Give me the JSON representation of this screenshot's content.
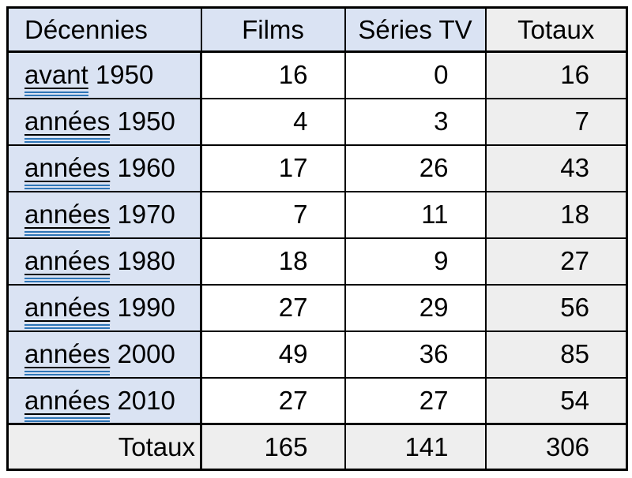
{
  "table": {
    "headers": {
      "decades": "Décennies",
      "films": "Films",
      "series": "Séries TV",
      "totals": "Totaux"
    },
    "rows": [
      {
        "word": "avant",
        "year": "1950",
        "films": "16",
        "series": "0",
        "total": "16"
      },
      {
        "word": "années",
        "year": "1950",
        "films": "4",
        "series": "3",
        "total": "7"
      },
      {
        "word": "années",
        "year": "1960",
        "films": "17",
        "series": "26",
        "total": "43"
      },
      {
        "word": "années",
        "year": "1970",
        "films": "7",
        "series": "11",
        "total": "18"
      },
      {
        "word": "années",
        "year": "1980",
        "films": "18",
        "series": "9",
        "total": "27"
      },
      {
        "word": "années",
        "year": "1990",
        "films": "27",
        "series": "29",
        "total": "56"
      },
      {
        "word": "années",
        "year": "2000",
        "films": "49",
        "series": "36",
        "total": "85"
      },
      {
        "word": "années",
        "year": "2010",
        "films": "27",
        "series": "27",
        "total": "54"
      }
    ],
    "totals_row": {
      "label": "Totaux",
      "films": "165",
      "series": "141",
      "total": "306"
    }
  },
  "colors": {
    "header_bg": "#dae3f3",
    "first_column_bg": "#dae3f3",
    "totals_bg": "#eeeeee",
    "border": "#000000",
    "text": "#000000",
    "link_double_underline": "#2e75b6"
  },
  "chart_data": {
    "type": "table",
    "title": "",
    "columns": [
      "Décennies",
      "Films",
      "Séries TV",
      "Totaux"
    ],
    "rows": [
      [
        "avant 1950",
        16,
        0,
        16
      ],
      [
        "années 1950",
        4,
        3,
        7
      ],
      [
        "années 1960",
        17,
        26,
        43
      ],
      [
        "années 1970",
        7,
        11,
        18
      ],
      [
        "années 1980",
        18,
        9,
        27
      ],
      [
        "années 1990",
        27,
        29,
        56
      ],
      [
        "années 2000",
        49,
        36,
        85
      ],
      [
        "années 2010",
        27,
        27,
        54
      ]
    ],
    "totals": [
      "Totaux",
      165,
      141,
      306
    ]
  }
}
